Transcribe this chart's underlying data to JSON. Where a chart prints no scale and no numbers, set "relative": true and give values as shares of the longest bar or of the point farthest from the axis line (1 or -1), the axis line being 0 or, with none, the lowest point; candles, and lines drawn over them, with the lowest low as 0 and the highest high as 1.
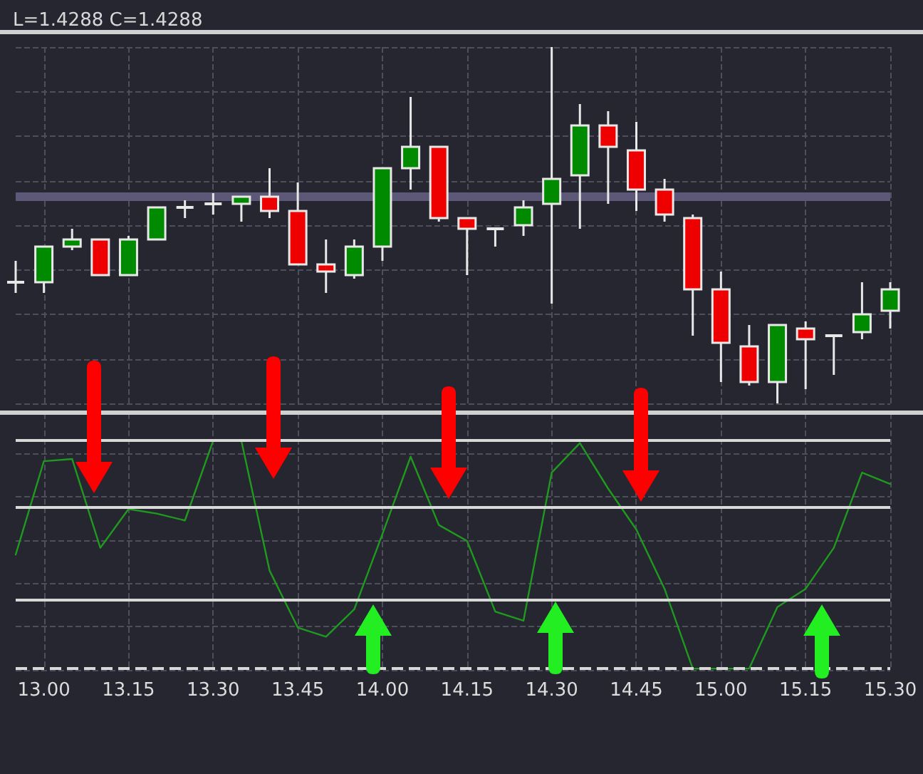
{
  "chart_data": [
    {
      "type": "candlestick",
      "categories": [
        null,
        "13.00",
        null,
        null,
        "13.15",
        null,
        null,
        "13.30",
        null,
        null,
        "13.45",
        null,
        null,
        "14.00",
        null,
        null,
        "14.15",
        null,
        null,
        "14.30",
        null,
        null,
        "14.45",
        null,
        null,
        "15.00",
        null,
        null,
        "15.15",
        null,
        null,
        "15.30"
      ],
      "ohlc": [
        [
          0.34,
          0.4,
          0.31,
          0.34
        ],
        [
          0.34,
          0.44,
          0.31,
          0.44
        ],
        [
          0.44,
          0.49,
          0.43,
          0.46
        ],
        [
          0.46,
          0.46,
          0.36,
          0.36
        ],
        [
          0.36,
          0.47,
          0.36,
          0.46
        ],
        [
          0.46,
          0.55,
          0.46,
          0.55
        ],
        [
          0.55,
          0.57,
          0.52,
          0.55
        ],
        [
          0.56,
          0.59,
          0.53,
          0.56
        ],
        [
          0.56,
          0.58,
          0.51,
          0.58
        ],
        [
          0.58,
          0.66,
          0.52,
          0.54
        ],
        [
          0.54,
          0.62,
          0.39,
          0.39
        ],
        [
          0.39,
          0.46,
          0.31,
          0.37
        ],
        [
          0.36,
          0.46,
          0.35,
          0.44
        ],
        [
          0.44,
          0.66,
          0.4,
          0.66
        ],
        [
          0.66,
          0.86,
          0.6,
          0.72
        ],
        [
          0.72,
          0.72,
          0.51,
          0.52
        ],
        [
          0.52,
          0.52,
          0.36,
          0.49
        ],
        [
          0.49,
          0.49,
          0.44,
          0.49
        ],
        [
          0.5,
          0.57,
          0.47,
          0.55
        ],
        [
          0.56,
          1,
          0.28,
          0.63
        ],
        [
          0.64,
          0.84,
          0.49,
          0.78
        ],
        [
          0.78,
          0.82,
          0.56,
          0.72
        ],
        [
          0.71,
          0.79,
          0.54,
          0.6
        ],
        [
          0.6,
          0.63,
          0.51,
          0.53
        ],
        [
          0.52,
          0.53,
          0.19,
          0.32
        ],
        [
          0.32,
          0.37,
          0.06,
          0.17
        ],
        [
          0.16,
          0.22,
          0.05,
          0.06
        ],
        [
          0.06,
          0.22,
          0,
          0.22
        ],
        [
          0.21,
          0.23,
          0.04,
          0.18
        ],
        [
          0.19,
          0.19,
          0.08,
          0.19
        ],
        [
          0.2,
          0.34,
          0.18,
          0.25
        ],
        [
          0.26,
          0.34,
          0.21,
          0.32
        ]
      ],
      "relative": true,
      "grid": true,
      "tick_labels": false,
      "ref_lines": [
        {
          "axis": "y",
          "value": 0.58,
          "color": "#5e5878"
        }
      ],
      "annotations": [
        "L=1.4288 C=1.4288"
      ]
    },
    {
      "type": "line",
      "categories": [
        null,
        "13.00",
        null,
        null,
        "13.15",
        null,
        null,
        "13.30",
        null,
        null,
        "13.45",
        null,
        null,
        "14.00",
        null,
        null,
        "14.15",
        null,
        null,
        "14.30",
        null,
        null,
        "14.45",
        null,
        null,
        "15.00",
        null,
        null,
        "15.15",
        null,
        null,
        "15.30"
      ],
      "series": [
        {
          "color": "#1f9a1f",
          "values": [
            0.5,
            0.91,
            0.92,
            0.53,
            0.7,
            0.68,
            0.65,
            1,
            1,
            0.43,
            0.18,
            0.14,
            0.26,
            0.59,
            0.93,
            0.63,
            0.56,
            0.25,
            0.21,
            0.86,
            0.99,
            0.79,
            0.61,
            0.35,
            0,
            0,
            0,
            0.27,
            0.35,
            0.53,
            0.86,
            0.81
          ]
        }
      ],
      "relative": true,
      "grid": true,
      "tick_labels": "x",
      "marker": "none",
      "line_style": "solid",
      "ref_lines": [
        {
          "axis": "y",
          "value": 1,
          "color": "#d8d8d8"
        },
        {
          "axis": "y",
          "value": 0.71,
          "color": "#d8d8d8"
        },
        {
          "axis": "y",
          "value": 0.3,
          "color": "#d8d8d8"
        },
        {
          "axis": "y",
          "value": 0,
          "color": "#d8d8d8",
          "line_style": "dashed"
        }
      ]
    }
  ]
}
